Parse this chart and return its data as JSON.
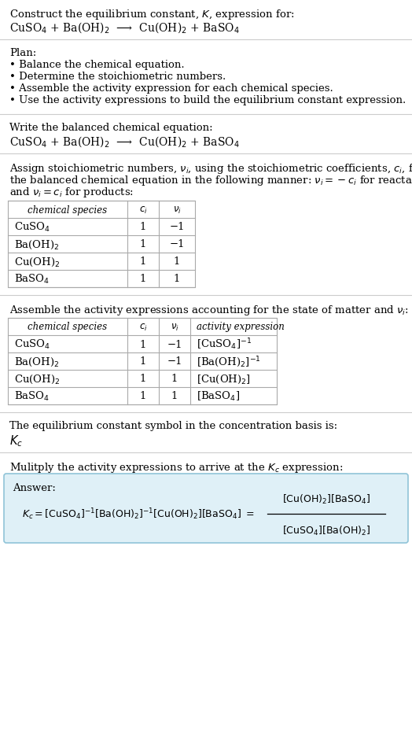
{
  "bg_color": "#ffffff",
  "text_color": "#000000",
  "separator_color": "#cccccc",
  "table_border_color": "#aaaaaa",
  "answer_box_color": "#dff0f7",
  "answer_box_border": "#90c4d8",
  "font_size": 9.5,
  "title_line1": "Construct the equilibrium constant, $K$, expression for:",
  "title_line2": "CuSO$_4$ + Ba(OH)$_2$  ⟶  Cu(OH)$_2$ + BaSO$_4$",
  "plan_header": "Plan:",
  "plan_items": [
    "• Balance the chemical equation.",
    "• Determine the stoichiometric numbers.",
    "• Assemble the activity expression for each chemical species.",
    "• Use the activity expressions to build the equilibrium constant expression."
  ],
  "sec2_header": "Write the balanced chemical equation:",
  "sec2_eq": "CuSO$_4$ + Ba(OH)$_2$  ⟶  Cu(OH)$_2$ + BaSO$_4$",
  "sec3_lines": [
    "Assign stoichiometric numbers, $\\nu_i$, using the stoichiometric coefficients, $c_i$, from",
    "the balanced chemical equation in the following manner: $\\nu_i = -c_i$ for reactants",
    "and $\\nu_i = c_i$ for products:"
  ],
  "table1_col_headers": [
    "chemical species",
    "$c_i$",
    "$\\nu_i$"
  ],
  "table1_rows": [
    [
      "CuSO$_4$",
      "1",
      "−1"
    ],
    [
      "Ba(OH)$_2$",
      "1",
      "−1"
    ],
    [
      "Cu(OH)$_2$",
      "1",
      "1"
    ],
    [
      "BaSO$_4$",
      "1",
      "1"
    ]
  ],
  "sec4_header": "Assemble the activity expressions accounting for the state of matter and $\\nu_i$:",
  "table2_col_headers": [
    "chemical species",
    "$c_i$",
    "$\\nu_i$",
    "activity expression"
  ],
  "table2_rows": [
    [
      "CuSO$_4$",
      "1",
      "−1",
      "[CuSO$_4$]$^{-1}$"
    ],
    [
      "Ba(OH)$_2$",
      "1",
      "−1",
      "[Ba(OH)$_2$]$^{-1}$"
    ],
    [
      "Cu(OH)$_2$",
      "1",
      "1",
      "[Cu(OH)$_2$]"
    ],
    [
      "BaSO$_4$",
      "1",
      "1",
      "[BaSO$_4$]"
    ]
  ],
  "sec5_header": "The equilibrium constant symbol in the concentration basis is:",
  "sec5_symbol": "$K_c$",
  "sec6_header": "Mulitply the activity expressions to arrive at the $K_c$ expression:",
  "answer_label": "Answer:",
  "lhs_eq": "$K_c = [\\mathrm{CuSO_4}]^{-1}[\\mathrm{Ba(OH)_2}]^{-1}[\\mathrm{Cu(OH)_2}][\\mathrm{BaSO_4}] = $",
  "frac_num": "$[\\mathrm{Cu(OH)_2}][\\mathrm{BaSO_4}]$",
  "frac_den": "$[\\mathrm{CuSO_4}][\\mathrm{Ba(OH)_2}]$"
}
